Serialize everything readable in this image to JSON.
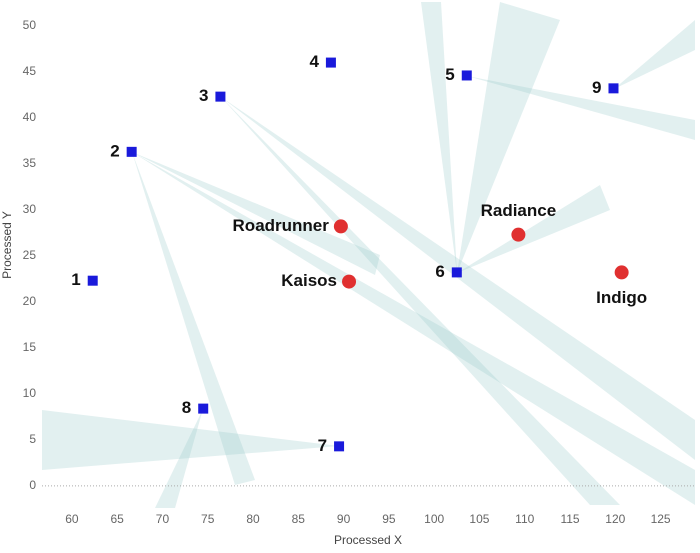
{
  "chart_data": {
    "type": "scatter",
    "x_label": "Processed X",
    "y_label": "Processed Y",
    "xlim": [
      56.7,
      128.8
    ],
    "xticks": [
      60,
      65,
      70,
      75,
      80,
      85,
      90,
      95,
      100,
      105,
      110,
      115,
      120,
      125
    ],
    "ylim": [
      -2.4,
      52.8
    ],
    "yticks": [
      0,
      5,
      10,
      15,
      20,
      25,
      30,
      35,
      40,
      45,
      50
    ],
    "points": [
      {
        "label": "1",
        "x": 62.3,
        "y": 22.3,
        "marker": "square",
        "color": "#1a1adb"
      },
      {
        "label": "2",
        "x": 66.6,
        "y": 36.3,
        "marker": "square",
        "color": "#1a1adb"
      },
      {
        "label": "3",
        "x": 76.4,
        "y": 42.3,
        "marker": "square",
        "color": "#1a1adb"
      },
      {
        "label": "4",
        "x": 88.6,
        "y": 46.0,
        "marker": "square",
        "color": "#1a1adb"
      },
      {
        "label": "5",
        "x": 103.6,
        "y": 44.6,
        "marker": "square",
        "color": "#1a1adb"
      },
      {
        "label": "6",
        "x": 102.5,
        "y": 23.2,
        "marker": "square",
        "color": "#1a1adb"
      },
      {
        "label": "7",
        "x": 89.5,
        "y": 4.3,
        "marker": "square",
        "color": "#1a1adb"
      },
      {
        "label": "8",
        "x": 74.5,
        "y": 8.4,
        "marker": "square",
        "color": "#1a1adb"
      },
      {
        "label": "9",
        "x": 119.8,
        "y": 43.2,
        "marker": "square",
        "color": "#1a1adb"
      },
      {
        "label": "Roadrunner",
        "x": 89.7,
        "y": 28.2,
        "marker": "circle",
        "color": "#e03030"
      },
      {
        "label": "Kaisos",
        "x": 90.6,
        "y": 22.2,
        "marker": "circle",
        "color": "#e03030"
      },
      {
        "label": "Radiance",
        "x": 109.3,
        "y": 27.3,
        "marker": "circle",
        "color": "#e03030"
      },
      {
        "label": "Indigo",
        "x": 120.7,
        "y": 23.2,
        "marker": "circle",
        "color": "#e03030"
      }
    ]
  }
}
